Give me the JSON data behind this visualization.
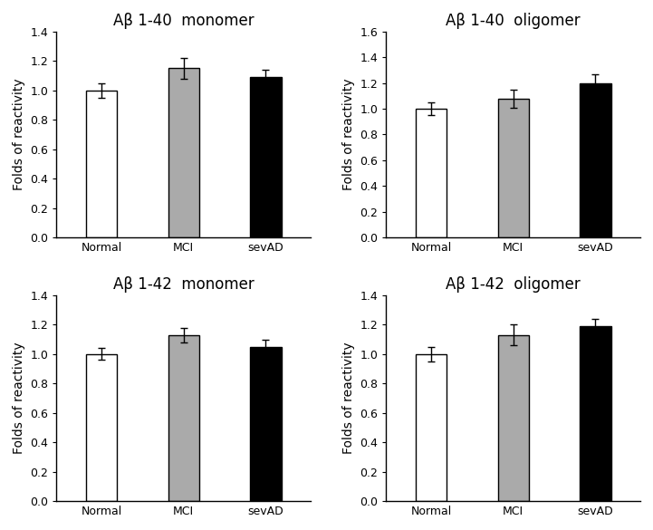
{
  "subplots": [
    {
      "title": "Aβ 1-40  monomer",
      "values": [
        1.0,
        1.15,
        1.09
      ],
      "errors": [
        0.05,
        0.07,
        0.05
      ],
      "ylim": [
        0,
        1.4
      ],
      "yticks": [
        0.0,
        0.2,
        0.4,
        0.6,
        0.8,
        1.0,
        1.2,
        1.4
      ]
    },
    {
      "title": "Aβ 1-40  oligomer",
      "values": [
        1.0,
        1.08,
        1.2
      ],
      "errors": [
        0.05,
        0.07,
        0.07
      ],
      "ylim": [
        0,
        1.6
      ],
      "yticks": [
        0.0,
        0.2,
        0.4,
        0.6,
        0.8,
        1.0,
        1.2,
        1.4,
        1.6
      ]
    },
    {
      "title": "Aβ 1-42  monomer",
      "values": [
        1.0,
        1.13,
        1.05
      ],
      "errors": [
        0.04,
        0.05,
        0.05
      ],
      "ylim": [
        0,
        1.4
      ],
      "yticks": [
        0.0,
        0.2,
        0.4,
        0.6,
        0.8,
        1.0,
        1.2,
        1.4
      ]
    },
    {
      "title": "Aβ 1-42  oligomer",
      "values": [
        1.0,
        1.13,
        1.19
      ],
      "errors": [
        0.05,
        0.07,
        0.05
      ],
      "ylim": [
        0,
        1.4
      ],
      "yticks": [
        0.0,
        0.2,
        0.4,
        0.6,
        0.8,
        1.0,
        1.2,
        1.4
      ]
    }
  ],
  "categories": [
    "Normal",
    "MCI",
    "sevAD"
  ],
  "bar_colors": [
    "#ffffff",
    "#aaaaaa",
    "#000000"
  ],
  "bar_edgecolor": "#000000",
  "ylabel": "Folds of reactivity",
  "title_fontsize": 12,
  "label_fontsize": 10,
  "tick_fontsize": 9,
  "background_color": "#ffffff",
  "bar_width": 0.38,
  "xlim": [
    -0.55,
    2.55
  ]
}
